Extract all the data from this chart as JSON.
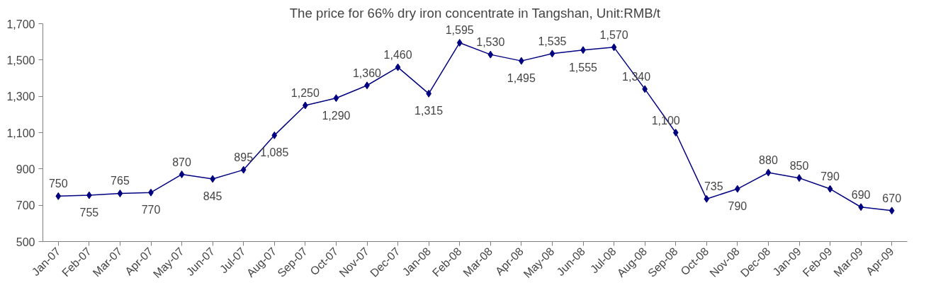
{
  "chart_data": {
    "type": "line",
    "title": "The price for 66% dry iron concentrate in Tangshan, Unit:RMB/t",
    "categories": [
      "Jan-07",
      "Feb-07",
      "Mar-07",
      "Apr-07",
      "May-07",
      "Jun-07",
      "Jul-07",
      "Aug-07",
      "Sep-07",
      "Oct-07",
      "Nov-07",
      "Dec-07",
      "Jan-08",
      "Feb-08",
      "Mar-08",
      "Apr-08",
      "May-08",
      "Jun-08",
      "Jul-08",
      "Aug-08",
      "Sep-08",
      "Oct-08",
      "Nov-08",
      "Dec-08",
      "Jan-09",
      "Feb-09",
      "Mar-09",
      "Apr-09"
    ],
    "series": [
      {
        "color": "#000080",
        "values": [
          750,
          755,
          765,
          770,
          870,
          845,
          895,
          1085,
          1250,
          1290,
          1360,
          1460,
          1315,
          1595,
          1530,
          1495,
          1535,
          1555,
          1570,
          1340,
          1100,
          735,
          790,
          880,
          850,
          790,
          690,
          670
        ]
      }
    ],
    "ylim": [
      500,
      1700
    ],
    "yticks": [
      500,
      700,
      900,
      {
        "value": 1100,
        "label": "1,100"
      },
      {
        "value": 1300,
        "label": "1,300"
      },
      {
        "value": 1500,
        "label": "1,500"
      },
      {
        "value": 1700,
        "label": "1,700"
      }
    ],
    "value_labels": [
      "750",
      "755",
      "765",
      "770",
      "870",
      "845",
      "895",
      "1,085",
      "1,250",
      "1,290",
      "1,360",
      "1,460",
      "1,315",
      "1,595",
      "1,530",
      "1,495",
      "1,535",
      "1,555",
      "1,570",
      "1,340",
      "1,100",
      "735",
      "790",
      "880",
      "850",
      "790",
      "690",
      "670"
    ],
    "grid": false,
    "marker": "diamond",
    "line_style": "solid"
  }
}
